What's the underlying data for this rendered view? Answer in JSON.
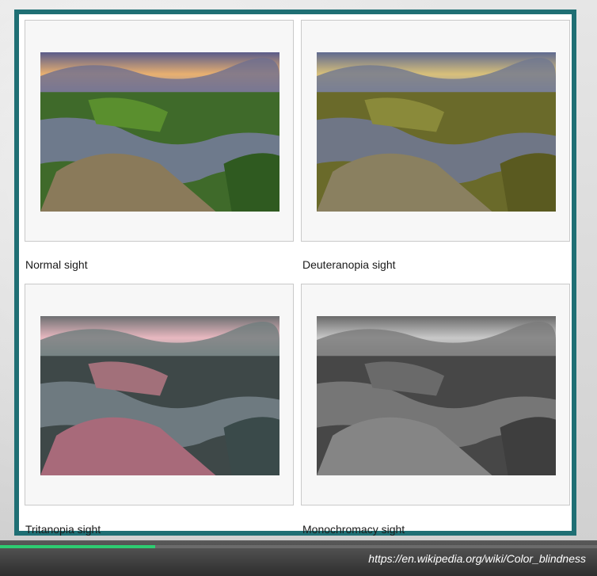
{
  "panels": [
    {
      "caption": "Normal sight",
      "filter": "normal"
    },
    {
      "caption": "Deuteranopia sight",
      "filter": "deuteranopia"
    },
    {
      "caption": "Tritanopia sight",
      "filter": "tritanopia"
    },
    {
      "caption": "Monochromacy sight",
      "filter": "monochromacy"
    }
  ],
  "footer": {
    "source_url": "https://en.wikipedia.org/wiki/Color_blindness",
    "progress_fraction": 0.26,
    "progress_color": "#2ecc71"
  },
  "colors": {
    "frame_border": "#1f6f74"
  }
}
